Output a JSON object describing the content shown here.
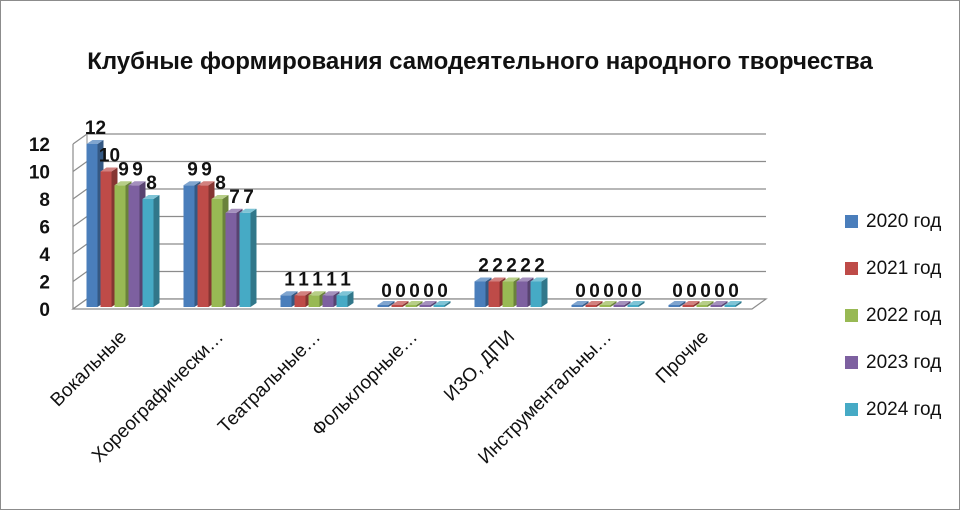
{
  "chart_data": {
    "type": "bar",
    "title": "Клубные формирования  самодеятельного народного творчества",
    "categories": [
      "Вокальные",
      "Хореографически…",
      "Театральные…",
      "Фольклорные…",
      "ИЗО, ДПИ",
      "Инструментальны…",
      "Прочие"
    ],
    "series": [
      {
        "name": "2020 год",
        "color": "#4a7ebb",
        "values": [
          12,
          9,
          1,
          0,
          2,
          0,
          0
        ]
      },
      {
        "name": "2021 год",
        "color": "#be4b48",
        "values": [
          10,
          9,
          1,
          0,
          2,
          0,
          0
        ]
      },
      {
        "name": "2022 год",
        "color": "#98b954",
        "values": [
          9,
          8,
          1,
          0,
          2,
          0,
          0
        ]
      },
      {
        "name": "2023 год",
        "color": "#7d60a0",
        "values": [
          9,
          7,
          1,
          0,
          2,
          0,
          0
        ]
      },
      {
        "name": "2024 год",
        "color": "#46aac5",
        "values": [
          8,
          7,
          1,
          0,
          2,
          0,
          0
        ]
      }
    ],
    "ylim": [
      0,
      12
    ],
    "yticks": [
      0,
      2,
      4,
      6,
      8,
      10,
      12
    ],
    "grid": true,
    "legend": "right",
    "bar_style": "3d"
  }
}
